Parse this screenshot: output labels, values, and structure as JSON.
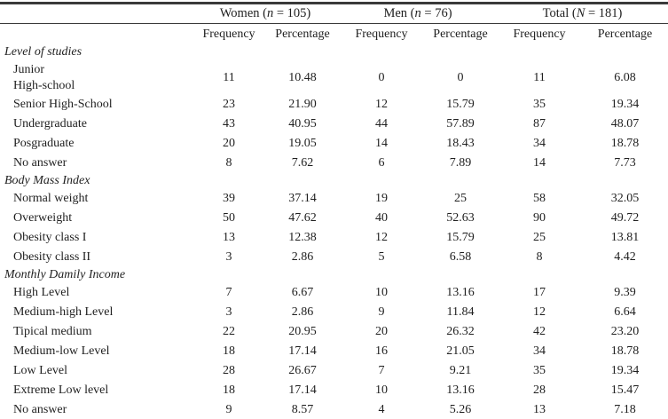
{
  "colors": {
    "background": "#ffffff",
    "text": "#1f1f1f",
    "rule": "#3a3a3a"
  },
  "header": {
    "groups": [
      {
        "prefix": "Women (",
        "var": "n",
        "suffix": " = 105)"
      },
      {
        "prefix": "Men (",
        "var": "n",
        "suffix": " = 76)"
      },
      {
        "prefix": "Total (",
        "var": "N",
        "suffix": " = 181)"
      }
    ],
    "subheaders": [
      "Frequency",
      "Percentage",
      "Frequency",
      "Percentage",
      "Frequency",
      "Percentage"
    ]
  },
  "sections": [
    {
      "title": "Level of studies",
      "rows": [
        {
          "label": "Junior\nHigh-school",
          "values": [
            "11",
            "10.48",
            "0",
            "0",
            "11",
            "6.08"
          ]
        },
        {
          "label": "Senior High-School",
          "values": [
            "23",
            "21.90",
            "12",
            "15.79",
            "35",
            "19.34"
          ]
        },
        {
          "label": "Undergraduate",
          "values": [
            "43",
            "40.95",
            "44",
            "57.89",
            "87",
            "48.07"
          ]
        },
        {
          "label": "Posgraduate",
          "values": [
            "20",
            "19.05",
            "14",
            "18.43",
            "34",
            "18.78"
          ]
        },
        {
          "label": "No answer",
          "values": [
            "8",
            "7.62",
            "6",
            "7.89",
            "14",
            "7.73"
          ]
        }
      ]
    },
    {
      "title": "Body Mass Index",
      "rows": [
        {
          "label": "Normal weight",
          "values": [
            "39",
            "37.14",
            "19",
            "25",
            "58",
            "32.05"
          ]
        },
        {
          "label": "Overweight",
          "values": [
            "50",
            "47.62",
            "40",
            "52.63",
            "90",
            "49.72"
          ]
        },
        {
          "label": "Obesity class I",
          "values": [
            "13",
            "12.38",
            "12",
            "15.79",
            "25",
            "13.81"
          ]
        },
        {
          "label": "Obesity class II",
          "values": [
            "3",
            "2.86",
            "5",
            "6.58",
            "8",
            "4.42"
          ]
        }
      ]
    },
    {
      "title": "Monthly Damily Income",
      "rows": [
        {
          "label": "High Level",
          "values": [
            "7",
            "6.67",
            "10",
            "13.16",
            "17",
            "9.39"
          ]
        },
        {
          "label": "Medium-high Level",
          "values": [
            "3",
            "2.86",
            "9",
            "11.84",
            "12",
            "6.64"
          ]
        },
        {
          "label": "Tipical medium",
          "values": [
            "22",
            "20.95",
            "20",
            "26.32",
            "42",
            "23.20"
          ]
        },
        {
          "label": "Medium-low Level",
          "values": [
            "18",
            "17.14",
            "16",
            "21.05",
            "34",
            "18.78"
          ]
        },
        {
          "label": "Low Level",
          "values": [
            "28",
            "26.67",
            "7",
            "9.21",
            "35",
            "19.34"
          ]
        },
        {
          "label": "Extreme Low level",
          "values": [
            "18",
            "17.14",
            "10",
            "13.16",
            "28",
            "15.47"
          ]
        },
        {
          "label": "No answer",
          "values": [
            "9",
            "8.57",
            "4",
            "5.26",
            "13",
            "7.18"
          ]
        }
      ]
    }
  ]
}
